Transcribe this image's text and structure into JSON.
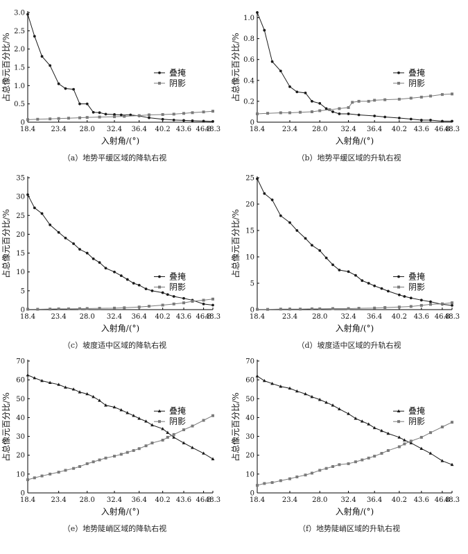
{
  "chart_data": [
    {
      "type": "line",
      "caption": "（a）地势平缓区域的降轨右视",
      "xlabel": "入射角/(°)",
      "ylabel": "占总像元百分比/%",
      "ylim": [
        0,
        3.0
      ],
      "yticks": [
        "0",
        "0.5",
        "1.0",
        "1.5",
        "2.0",
        "2.5",
        "3.0"
      ],
      "xlim": [
        18.4,
        48.3
      ],
      "xticks": [
        "18.4",
        "23.4",
        "28.0",
        "32.4",
        "36.4",
        "40.2",
        "43.6",
        "46.8",
        "48.3"
      ],
      "legend": "right-middle",
      "series": [
        {
          "name": "叠掩",
          "marker": "circle",
          "x": [
            18.4,
            19.5,
            20.7,
            22.0,
            23.4,
            24.5,
            25.8,
            26.8,
            28.0,
            29.0,
            30.0,
            31.0,
            32.4,
            33.5,
            35.0,
            36.4,
            38.0,
            40.2,
            42.0,
            43.6,
            45.0,
            46.8,
            48.3
          ],
          "y": [
            2.95,
            2.35,
            1.8,
            1.55,
            1.05,
            0.92,
            0.9,
            0.5,
            0.5,
            0.27,
            0.26,
            0.22,
            0.21,
            0.2,
            0.2,
            0.17,
            0.12,
            0.08,
            0.06,
            0.05,
            0.04,
            0.03,
            0.02
          ]
        },
        {
          "name": "阴影",
          "marker": "square",
          "x": [
            18.4,
            20.0,
            22.0,
            23.4,
            25.0,
            26.8,
            28.0,
            30.0,
            32.4,
            34.0,
            36.4,
            38.0,
            40.2,
            42.0,
            43.6,
            45.0,
            46.8,
            48.3
          ],
          "y": [
            0.07,
            0.08,
            0.09,
            0.1,
            0.11,
            0.12,
            0.13,
            0.14,
            0.15,
            0.16,
            0.18,
            0.2,
            0.21,
            0.22,
            0.24,
            0.26,
            0.28,
            0.3
          ]
        }
      ]
    },
    {
      "type": "line",
      "caption": "（b）地势平缓区域的升轨右视",
      "xlabel": "入射角/(°)",
      "ylabel": "占总像元百分比/%",
      "ylim": [
        0,
        1.05
      ],
      "yticks": [
        "0",
        "0.2",
        "0.4",
        "0.6",
        "0.8",
        "1.0"
      ],
      "xlim": [
        18.4,
        48.3
      ],
      "xticks": [
        "18.4",
        "23.4",
        "28.0",
        "32.4",
        "36.4",
        "40.2",
        "43.6",
        "46.8",
        "48.3"
      ],
      "legend": "right-middle",
      "series": [
        {
          "name": "叠掩",
          "marker": "circle",
          "x": [
            18.4,
            19.5,
            20.7,
            22.0,
            23.4,
            24.5,
            25.8,
            26.8,
            28.0,
            29.0,
            30.0,
            31.0,
            32.4,
            34.0,
            36.4,
            38.0,
            40.2,
            42.0,
            43.6,
            45.0,
            46.8,
            48.3
          ],
          "y": [
            1.05,
            0.88,
            0.58,
            0.49,
            0.34,
            0.29,
            0.28,
            0.2,
            0.18,
            0.13,
            0.1,
            0.08,
            0.08,
            0.07,
            0.06,
            0.05,
            0.04,
            0.03,
            0.02,
            0.02,
            0.01,
            0.01
          ]
        },
        {
          "name": "阴影",
          "marker": "square",
          "x": [
            18.4,
            20.0,
            22.0,
            23.4,
            25.0,
            26.8,
            28.0,
            29.5,
            31.0,
            32.4,
            33.0,
            34.0,
            35.5,
            36.4,
            38.0,
            40.2,
            42.0,
            43.6,
            45.0,
            46.8,
            48.3
          ],
          "y": [
            0.08,
            0.085,
            0.09,
            0.09,
            0.095,
            0.1,
            0.11,
            0.12,
            0.13,
            0.14,
            0.19,
            0.2,
            0.2,
            0.21,
            0.215,
            0.22,
            0.23,
            0.24,
            0.25,
            0.265,
            0.27
          ]
        }
      ]
    },
    {
      "type": "line",
      "caption": "（c）坡度适中区域的降轨右视",
      "xlabel": "入射角/(°)",
      "ylabel": "占总像元百分比/%",
      "ylim": [
        0,
        35
      ],
      "yticks": [
        "0",
        "5",
        "10",
        "15",
        "20",
        "25",
        "30",
        "35"
      ],
      "xlim": [
        18.4,
        48.3
      ],
      "xticks": [
        "18.4",
        "23.4",
        "28.0",
        "32.4",
        "36.4",
        "40.2",
        "43.6",
        "46.8",
        "48.3"
      ],
      "legend": "right-lower",
      "series": [
        {
          "name": "叠掩",
          "marker": "circle",
          "x": [
            18.4,
            19.5,
            20.7,
            22.0,
            23.4,
            24.5,
            25.8,
            26.8,
            28.0,
            29.0,
            30.0,
            31.0,
            32.4,
            33.5,
            34.5,
            35.5,
            36.4,
            37.5,
            38.5,
            40.2,
            41.0,
            42.0,
            43.6,
            45.0,
            46.8,
            48.3
          ],
          "y": [
            30.5,
            27.0,
            25.5,
            22.5,
            20.5,
            19.0,
            17.5,
            16.0,
            15.0,
            13.5,
            12.5,
            11.0,
            10.0,
            9.0,
            8.0,
            7.0,
            6.5,
            5.5,
            5.0,
            4.5,
            4.0,
            3.5,
            3.0,
            2.5,
            1.5,
            1.2
          ]
        },
        {
          "name": "阴影",
          "marker": "square",
          "x": [
            18.4,
            20.0,
            22.0,
            23.4,
            25.0,
            26.8,
            28.0,
            30.0,
            32.4,
            34.0,
            36.4,
            38.0,
            40.2,
            42.0,
            43.6,
            45.0,
            46.8,
            48.3
          ],
          "y": [
            0.1,
            0.1,
            0.15,
            0.2,
            0.2,
            0.25,
            0.3,
            0.35,
            0.4,
            0.5,
            0.7,
            0.9,
            1.2,
            1.5,
            1.8,
            2.2,
            2.5,
            2.8
          ]
        }
      ]
    },
    {
      "type": "line",
      "caption": "（d）坡度适中区域的升轨右视",
      "xlabel": "入射角/(°)",
      "ylabel": "占总像元百分比/%",
      "ylim": [
        0,
        25
      ],
      "yticks": [
        "0",
        "5",
        "10",
        "15",
        "20",
        "25"
      ],
      "xlim": [
        18.4,
        48.3
      ],
      "xticks": [
        "18.4",
        "23.4",
        "28.0",
        "32.4",
        "36.4",
        "40.2",
        "43.6",
        "46.8",
        "48.3"
      ],
      "legend": "right-lower",
      "series": [
        {
          "name": "叠掩",
          "marker": "circle",
          "x": [
            18.4,
            19.5,
            20.7,
            22.0,
            23.4,
            24.5,
            25.8,
            26.8,
            28.0,
            29.0,
            30.0,
            31.0,
            32.4,
            33.5,
            34.5,
            35.5,
            36.4,
            37.5,
            38.5,
            40.2,
            41.0,
            42.0,
            43.6,
            45.0,
            46.8,
            48.3
          ],
          "y": [
            24.8,
            22.0,
            20.8,
            17.8,
            16.5,
            15.0,
            13.5,
            12.2,
            11.2,
            9.8,
            8.5,
            7.5,
            7.2,
            6.5,
            5.5,
            5.0,
            4.5,
            4.0,
            3.5,
            2.8,
            2.5,
            2.2,
            1.8,
            1.5,
            1.0,
            0.8
          ]
        },
        {
          "name": "阴影",
          "marker": "square",
          "x": [
            18.4,
            20.0,
            22.0,
            23.4,
            25.0,
            26.8,
            28.0,
            30.0,
            32.4,
            34.0,
            36.4,
            38.0,
            40.2,
            42.0,
            43.6,
            45.0,
            46.8,
            48.3
          ],
          "y": [
            0.05,
            0.05,
            0.1,
            0.1,
            0.1,
            0.15,
            0.15,
            0.2,
            0.2,
            0.25,
            0.3,
            0.4,
            0.5,
            0.6,
            0.8,
            1.0,
            1.1,
            1.3
          ]
        }
      ]
    },
    {
      "type": "line",
      "caption": "（e）地势陡峭区域的降轨右视",
      "xlabel": "入射角/(°)",
      "ylabel": "占总像元百分比/%",
      "ylim": [
        0,
        70
      ],
      "yticks": [
        "0",
        "10",
        "20",
        "30",
        "40",
        "50",
        "60",
        "70"
      ],
      "xlim": [
        18.4,
        48.3
      ],
      "xticks": [
        "18.4",
        "23.4",
        "28.0",
        "32.4",
        "36.4",
        "40.2",
        "43.6",
        "46.8",
        "48.3"
      ],
      "legend": "right-upper",
      "series": [
        {
          "name": "叠掩",
          "marker": "triangle",
          "x": [
            18.4,
            19.5,
            20.7,
            22.0,
            23.4,
            24.5,
            25.8,
            26.8,
            28.0,
            29.0,
            30.0,
            31.0,
            32.4,
            33.5,
            34.5,
            35.5,
            36.4,
            37.5,
            38.5,
            40.2,
            41.0,
            42.0,
            43.6,
            45.0,
            46.8,
            48.3
          ],
          "y": [
            62.5,
            61.0,
            59.5,
            58.5,
            57.5,
            56.0,
            55.0,
            53.5,
            52.5,
            51.0,
            49.0,
            46.5,
            45.5,
            44.0,
            42.5,
            41.0,
            39.5,
            38.0,
            36.0,
            34.0,
            32.0,
            29.5,
            26.5,
            24.0,
            21.0,
            18.0
          ]
        },
        {
          "name": "阴影",
          "marker": "square",
          "x": [
            18.4,
            19.5,
            20.7,
            22.0,
            23.4,
            24.5,
            25.8,
            26.8,
            28.0,
            29.0,
            30.0,
            31.0,
            32.4,
            33.5,
            34.5,
            35.5,
            36.4,
            37.5,
            38.5,
            40.2,
            41.0,
            42.0,
            43.6,
            45.0,
            46.8,
            48.3
          ],
          "y": [
            7.0,
            8.0,
            9.0,
            10.0,
            11.0,
            12.0,
            13.0,
            14.0,
            15.5,
            16.5,
            17.5,
            18.5,
            19.5,
            20.5,
            21.5,
            22.5,
            23.5,
            25.0,
            26.5,
            28.0,
            29.5,
            31.0,
            33.5,
            35.5,
            38.5,
            41.0
          ]
        }
      ]
    },
    {
      "type": "line",
      "caption": "（f）地势陡峭区域的升轨右视",
      "xlabel": "入射角/(°)",
      "ylabel": "占总像元百分比/%",
      "ylim": [
        0,
        70
      ],
      "yticks": [
        "0",
        "10",
        "20",
        "30",
        "40",
        "50",
        "60",
        "70"
      ],
      "xlim": [
        18.4,
        48.3
      ],
      "xticks": [
        "18.4",
        "23.4",
        "28.0",
        "32.4",
        "36.4",
        "40.2",
        "43.6",
        "46.8",
        "48.3"
      ],
      "legend": "right-upper",
      "series": [
        {
          "name": "叠掩",
          "marker": "triangle",
          "x": [
            18.4,
            19.5,
            20.7,
            22.0,
            23.4,
            24.5,
            25.8,
            26.8,
            28.0,
            29.0,
            30.0,
            31.0,
            32.4,
            33.5,
            34.5,
            35.5,
            36.4,
            37.5,
            38.5,
            40.2,
            41.0,
            42.0,
            43.6,
            45.0,
            46.8,
            48.3
          ],
          "y": [
            62.0,
            59.5,
            58.0,
            56.5,
            55.5,
            54.0,
            52.5,
            51.0,
            49.5,
            48.0,
            46.5,
            44.5,
            42.0,
            39.5,
            38.0,
            36.5,
            34.5,
            33.0,
            31.5,
            29.5,
            28.0,
            26.5,
            23.5,
            21.0,
            17.0,
            15.0
          ]
        },
        {
          "name": "阴影",
          "marker": "square",
          "x": [
            18.4,
            19.5,
            20.7,
            22.0,
            23.4,
            24.5,
            25.8,
            26.8,
            28.0,
            29.0,
            30.0,
            31.0,
            32.4,
            33.5,
            34.5,
            35.5,
            36.4,
            37.5,
            38.5,
            40.2,
            41.0,
            42.0,
            43.6,
            45.0,
            46.8,
            48.3
          ],
          "y": [
            4.0,
            5.0,
            5.5,
            6.5,
            7.5,
            8.5,
            9.5,
            10.5,
            12.0,
            13.0,
            14.0,
            15.0,
            15.5,
            16.5,
            17.5,
            18.5,
            19.5,
            21.0,
            22.5,
            24.5,
            26.0,
            27.5,
            29.5,
            32.0,
            35.0,
            37.5
          ]
        }
      ]
    }
  ]
}
